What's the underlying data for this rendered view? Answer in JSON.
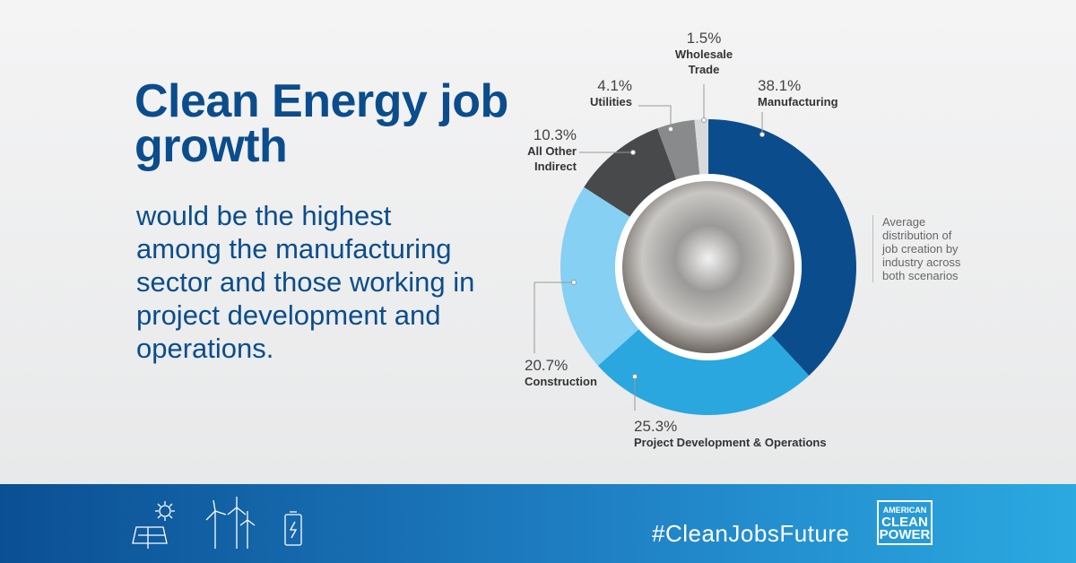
{
  "chart_data": {
    "type": "donut",
    "title": "Clean Energy job growth",
    "subtitle": "would be the highest among the manufacturing sector and those working in project development and operations.",
    "note": "Average distribution of job creation by industry across both scenarios",
    "categories": [
      "Manufacturing",
      "Project Development & Operations",
      "Construction",
      "All Other Indirect",
      "Utilities",
      "Wholesale Trade"
    ],
    "values": [
      38.1,
      25.3,
      20.7,
      10.3,
      4.1,
      1.5
    ],
    "value_labels": [
      "38.1%",
      "25.3%",
      "20.7%",
      "10.3%",
      "4.1%",
      "1.5%"
    ],
    "colors": [
      "#0b4d8c",
      "#2aa7df",
      "#85d0f3",
      "#48494b",
      "#898a8c",
      "#d9dadb"
    ]
  },
  "footer": {
    "hashtag": "#CleanJobsFuture",
    "logo": [
      "AMERICAN",
      "CLEAN",
      "POWER"
    ]
  }
}
